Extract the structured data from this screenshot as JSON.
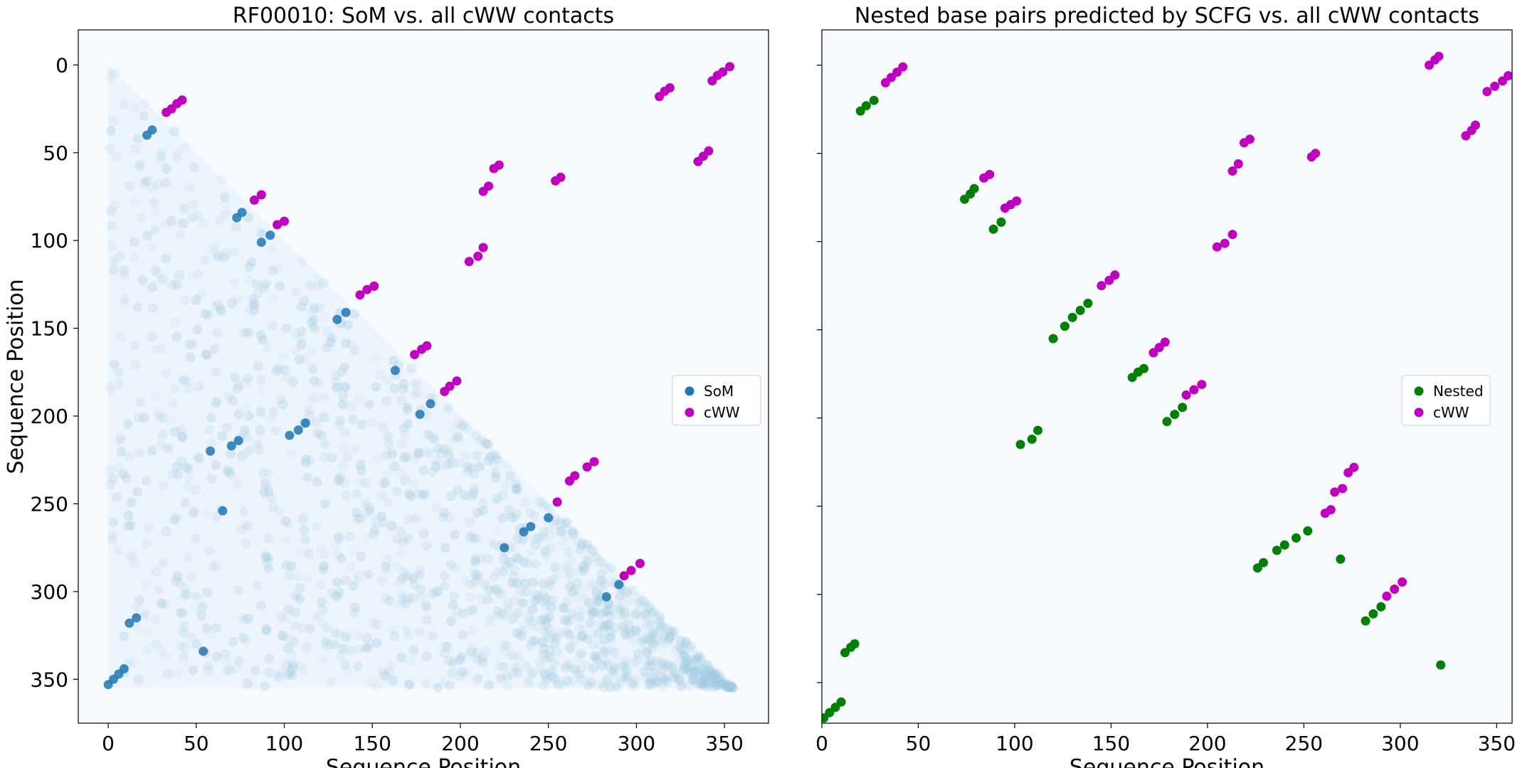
{
  "chart_data": [
    {
      "type": "scatter",
      "title": "RF00010: SoM vs. all cWW contacts",
      "xlabel": "Sequence Position",
      "ylabel": "Sequence Position",
      "xlim": [
        -17,
        375
      ],
      "ylim": [
        375,
        -20
      ],
      "y_inverted": true,
      "xticks": [
        0,
        50,
        100,
        150,
        200,
        250,
        300,
        350
      ],
      "yticks": [
        0,
        50,
        100,
        150,
        200,
        250,
        300,
        350
      ],
      "grid": false,
      "legend": {
        "placement": "center-right",
        "entries": [
          "SoM",
          "cWW"
        ]
      },
      "background": {
        "description": "faint SoM scores filling the lower-left triangle",
        "triangle_corners": [
          [
            0,
            0
          ],
          [
            0,
            355
          ],
          [
            355,
            355
          ]
        ]
      },
      "series": [
        {
          "name": "SoM",
          "color": "#1f77b4",
          "points": [
            [
              0,
              353
            ],
            [
              3,
              350
            ],
            [
              6,
              347
            ],
            [
              9,
              344
            ],
            [
              22,
              40
            ],
            [
              25,
              37
            ],
            [
              73,
              87
            ],
            [
              76,
              84
            ],
            [
              87,
              101
            ],
            [
              92,
              97
            ],
            [
              163,
              174
            ],
            [
              177,
              199
            ],
            [
              183,
              193
            ],
            [
              58,
              220
            ],
            [
              70,
              217
            ],
            [
              74,
              214
            ],
            [
              103,
              211
            ],
            [
              108,
              208
            ],
            [
              112,
              204
            ],
            [
              65,
              254
            ],
            [
              225,
              275
            ],
            [
              236,
              266
            ],
            [
              240,
              263
            ],
            [
              250,
              258
            ],
            [
              283,
              303
            ],
            [
              290,
              296
            ],
            [
              12,
              318
            ],
            [
              16,
              315
            ],
            [
              54,
              334
            ],
            [
              130,
              145
            ],
            [
              135,
              141
            ]
          ]
        },
        {
          "name": "cWW",
          "color": "#bf00bf",
          "points": [
            [
              33,
              27
            ],
            [
              36,
              25
            ],
            [
              39,
              22
            ],
            [
              42,
              20
            ],
            [
              83,
              77
            ],
            [
              87,
              74
            ],
            [
              96,
              91
            ],
            [
              100,
              89
            ],
            [
              143,
              131
            ],
            [
              147,
              128
            ],
            [
              151,
              126
            ],
            [
              174,
              165
            ],
            [
              178,
              162
            ],
            [
              181,
              160
            ],
            [
              191,
              186
            ],
            [
              194,
              183
            ],
            [
              198,
              180
            ],
            [
              255,
              249
            ],
            [
              262,
              237
            ],
            [
              265,
              234
            ],
            [
              272,
              229
            ],
            [
              276,
              226
            ],
            [
              293,
              291
            ],
            [
              297,
              288
            ],
            [
              302,
              284
            ],
            [
              205,
              112
            ],
            [
              210,
              109
            ],
            [
              213,
              104
            ],
            [
              213,
              72
            ],
            [
              216,
              69
            ],
            [
              219,
              59
            ],
            [
              222,
              57
            ],
            [
              254,
              66
            ],
            [
              257,
              64
            ],
            [
              313,
              18
            ],
            [
              316,
              15
            ],
            [
              319,
              13
            ],
            [
              335,
              55
            ],
            [
              338,
              52
            ],
            [
              341,
              49
            ],
            [
              343,
              9
            ],
            [
              346,
              6
            ],
            [
              349,
              4
            ],
            [
              353,
              1
            ]
          ]
        }
      ]
    },
    {
      "type": "scatter",
      "title": "Nested base pairs predicted by SCFG vs. all cWW contacts",
      "xlabel": "Sequence Position",
      "ylabel": "",
      "xlim": [
        0,
        358
      ],
      "ylim": [
        373,
        -20
      ],
      "y_inverted": true,
      "xticks": [
        0,
        50,
        100,
        150,
        200,
        250,
        300,
        350
      ],
      "yticks": [
        0,
        50,
        100,
        150,
        200,
        250,
        300,
        350
      ],
      "ytick_labels_shown": false,
      "grid": false,
      "legend": {
        "placement": "center-right",
        "entries": [
          "Nested",
          "cWW"
        ]
      },
      "series": [
        {
          "name": "Nested",
          "color": "#008000",
          "points": [
            [
              1,
              370
            ],
            [
              4,
              367
            ],
            [
              7,
              364
            ],
            [
              10,
              361
            ],
            [
              12,
              333
            ],
            [
              15,
              330
            ],
            [
              17,
              328
            ],
            [
              20,
              26
            ],
            [
              23,
              23
            ],
            [
              27,
              20
            ],
            [
              74,
              76
            ],
            [
              77,
              73
            ],
            [
              79,
              70
            ],
            [
              89,
              93
            ],
            [
              93,
              89
            ],
            [
              103,
              215
            ],
            [
              109,
              212
            ],
            [
              112,
              207
            ],
            [
              120,
              155
            ],
            [
              126,
              148
            ],
            [
              130,
              143
            ],
            [
              134,
              139
            ],
            [
              138,
              135
            ],
            [
              161,
              177
            ],
            [
              164,
              174
            ],
            [
              167,
              172
            ],
            [
              179,
              202
            ],
            [
              183,
              198
            ],
            [
              187,
              194
            ],
            [
              226,
              285
            ],
            [
              229,
              282
            ],
            [
              236,
              275
            ],
            [
              240,
              272
            ],
            [
              246,
              268
            ],
            [
              252,
              264
            ],
            [
              269,
              280
            ],
            [
              282,
              315
            ],
            [
              286,
              311
            ],
            [
              290,
              307
            ],
            [
              321,
              340
            ]
          ]
        },
        {
          "name": "cWW",
          "color": "#bf00bf",
          "points": [
            [
              33,
              10
            ],
            [
              36,
              7
            ],
            [
              39,
              4
            ],
            [
              42,
              1
            ],
            [
              84,
              64
            ],
            [
              87,
              62
            ],
            [
              95,
              81
            ],
            [
              98,
              79
            ],
            [
              101,
              77
            ],
            [
              145,
              125
            ],
            [
              149,
              122
            ],
            [
              152,
              119
            ],
            [
              172,
              163
            ],
            [
              175,
              160
            ],
            [
              178,
              157
            ],
            [
              189,
              187
            ],
            [
              193,
              184
            ],
            [
              197,
              181
            ],
            [
              205,
              103
            ],
            [
              209,
              101
            ],
            [
              213,
              96
            ],
            [
              213,
              60
            ],
            [
              216,
              56
            ],
            [
              219,
              44
            ],
            [
              222,
              42
            ],
            [
              254,
              52
            ],
            [
              256,
              50
            ],
            [
              261,
              254
            ],
            [
              264,
              252
            ],
            [
              266,
              242
            ],
            [
              270,
              240
            ],
            [
              273,
              231
            ],
            [
              276,
              228
            ],
            [
              293,
              301
            ],
            [
              297,
              297
            ],
            [
              301,
              293
            ],
            [
              315,
              0
            ],
            [
              318,
              -3
            ],
            [
              320,
              -5
            ],
            [
              334,
              40
            ],
            [
              337,
              37
            ],
            [
              339,
              34
            ],
            [
              345,
              15
            ],
            [
              349,
              12
            ],
            [
              353,
              9
            ],
            [
              356,
              6
            ]
          ]
        }
      ]
    }
  ]
}
